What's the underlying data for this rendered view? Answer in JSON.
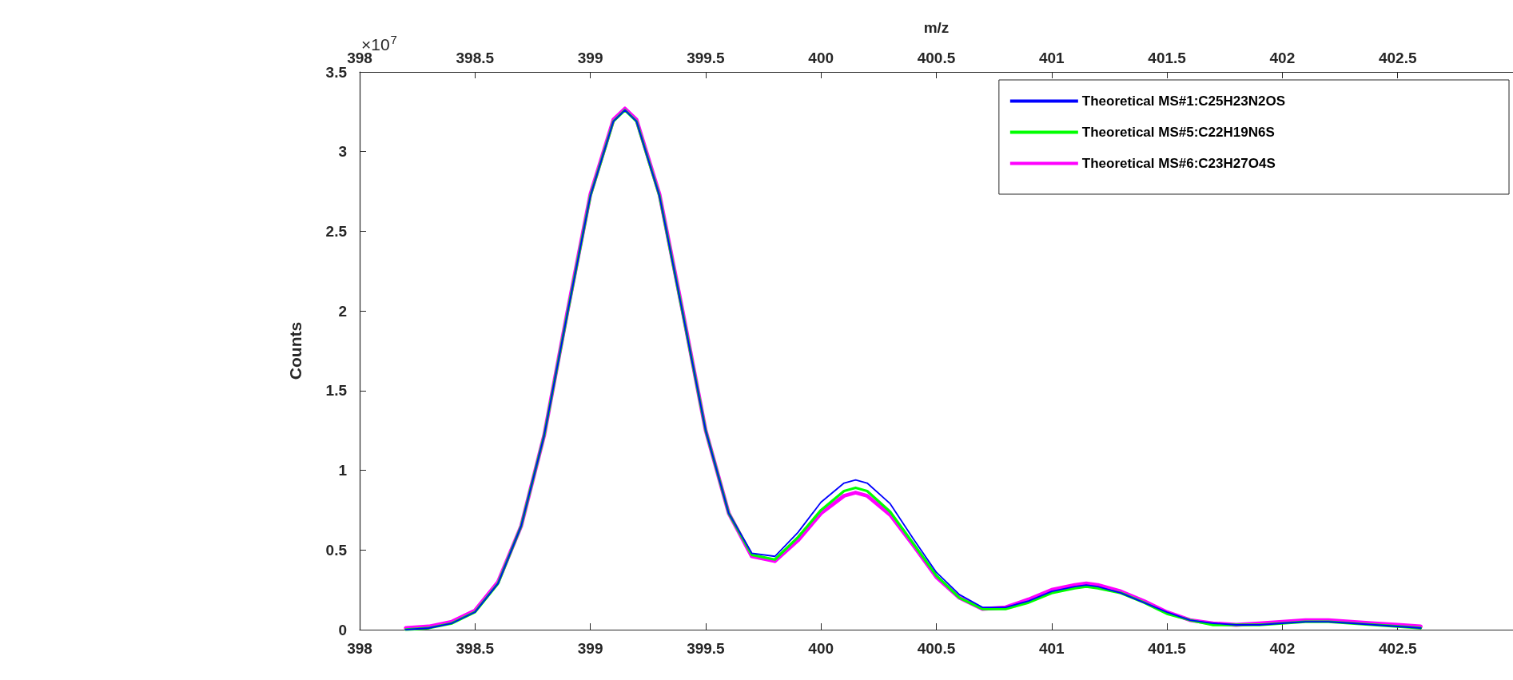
{
  "chart_data": {
    "type": "line",
    "x": [
      398.2,
      398.3,
      398.4,
      398.5,
      398.6,
      398.7,
      398.8,
      398.9,
      399.0,
      399.1,
      399.15,
      399.2,
      399.3,
      399.4,
      399.5,
      399.6,
      399.7,
      399.8,
      399.9,
      400.0,
      400.1,
      400.15,
      400.2,
      400.3,
      400.4,
      400.5,
      400.6,
      400.7,
      400.8,
      400.9,
      401.0,
      401.1,
      401.15,
      401.2,
      401.3,
      401.4,
      401.5,
      401.6,
      401.7,
      401.8,
      401.9,
      402.0,
      402.1,
      402.15,
      402.2,
      402.3,
      402.4,
      402.5,
      402.6
    ],
    "series": [
      {
        "name": "Theoretical MS#1:C25H23N2OS",
        "color": "#0000ff",
        "values": [
          0.0,
          0.01,
          0.04,
          0.11,
          0.29,
          0.65,
          1.22,
          1.98,
          2.72,
          3.19,
          3.26,
          3.19,
          2.72,
          1.99,
          1.25,
          0.73,
          0.48,
          0.46,
          0.61,
          0.8,
          0.92,
          0.94,
          0.92,
          0.79,
          0.57,
          0.36,
          0.22,
          0.14,
          0.14,
          0.18,
          0.24,
          0.27,
          0.28,
          0.27,
          0.23,
          0.17,
          0.11,
          0.06,
          0.04,
          0.03,
          0.03,
          0.04,
          0.05,
          0.05,
          0.05,
          0.04,
          0.03,
          0.02,
          0.01
        ]
      },
      {
        "name": "Theoretical MS#5:C22H19N6S",
        "color": "#00ff00",
        "values": [
          0.0,
          0.01,
          0.04,
          0.11,
          0.29,
          0.65,
          1.22,
          1.98,
          2.72,
          3.19,
          3.26,
          3.19,
          2.72,
          1.99,
          1.25,
          0.73,
          0.47,
          0.44,
          0.58,
          0.75,
          0.87,
          0.89,
          0.87,
          0.74,
          0.54,
          0.34,
          0.2,
          0.13,
          0.13,
          0.17,
          0.23,
          0.26,
          0.27,
          0.26,
          0.23,
          0.17,
          0.1,
          0.06,
          0.03,
          0.03,
          0.03,
          0.04,
          0.05,
          0.05,
          0.05,
          0.04,
          0.03,
          0.02,
          0.01
        ]
      },
      {
        "name": "Theoretical MS#6:C23H27O4S",
        "color": "#ff00ff",
        "values": [
          0.01,
          0.02,
          0.05,
          0.12,
          0.3,
          0.65,
          1.22,
          1.99,
          2.73,
          3.2,
          3.27,
          3.2,
          2.73,
          2.0,
          1.25,
          0.73,
          0.46,
          0.43,
          0.56,
          0.73,
          0.84,
          0.86,
          0.84,
          0.72,
          0.53,
          0.33,
          0.2,
          0.13,
          0.14,
          0.19,
          0.25,
          0.28,
          0.29,
          0.28,
          0.24,
          0.18,
          0.11,
          0.06,
          0.04,
          0.03,
          0.04,
          0.05,
          0.06,
          0.06,
          0.06,
          0.05,
          0.04,
          0.03,
          0.02
        ]
      }
    ],
    "ylabel": "Counts",
    "x2label": "m/z",
    "annotations": [
      "×10$^{7}$"
    ],
    "xlim": [
      398,
      403
    ],
    "xticks": [
      398,
      398.5,
      399,
      399.5,
      400,
      400.5,
      401,
      401.5,
      402,
      402.5
    ],
    "x2lim": [
      398,
      403
    ],
    "x2ticks": [
      398,
      398.5,
      399,
      399.5,
      400,
      400.5,
      401,
      401.5,
      402,
      402.5
    ],
    "ylim": [
      0,
      3.5
    ],
    "yticks": [
      0,
      0.5,
      1,
      1.5,
      2,
      2.5,
      3,
      3.5
    ],
    "grid": false,
    "legend": "top right",
    "marker": "none",
    "line_style": "solid"
  }
}
